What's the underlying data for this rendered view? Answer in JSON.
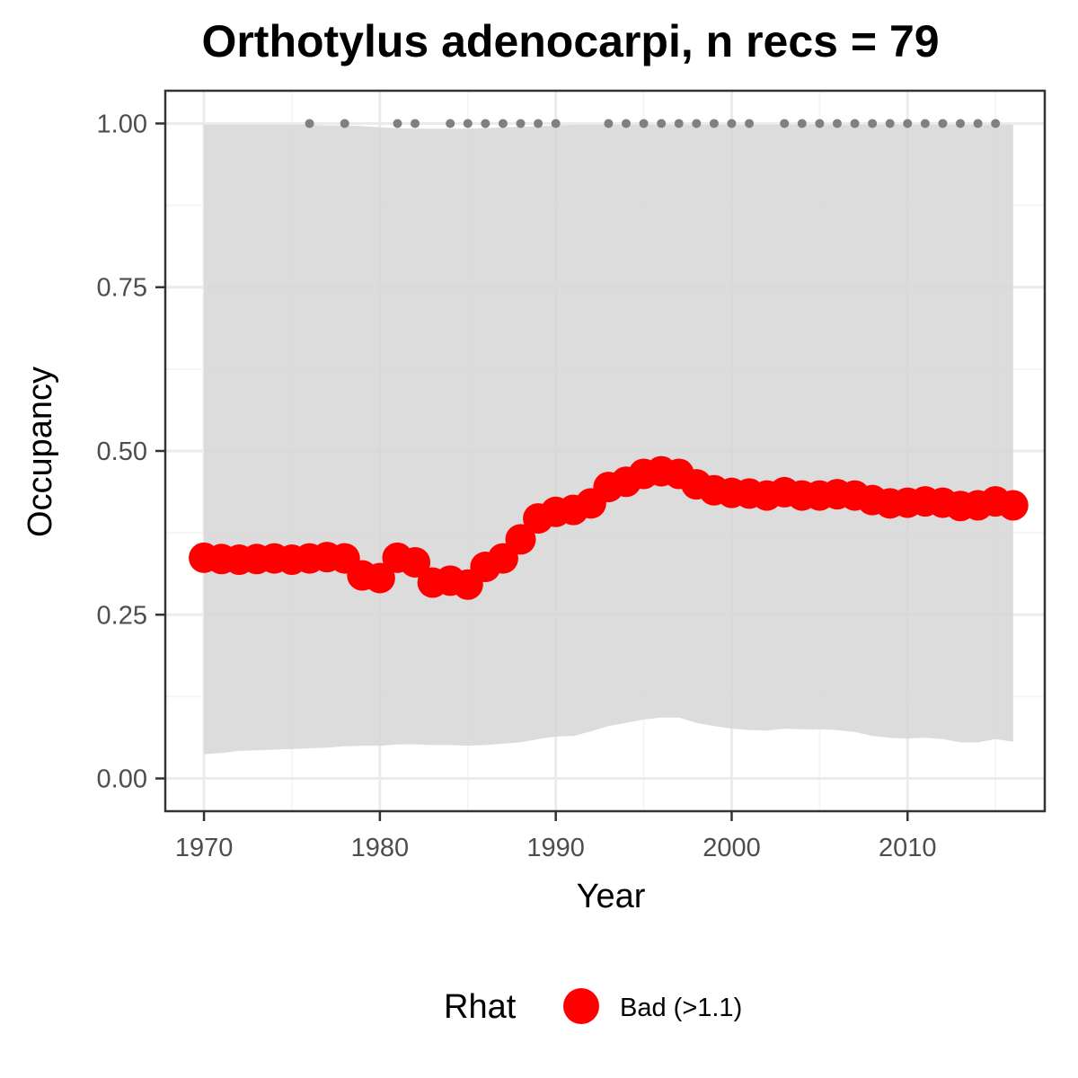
{
  "chart_data": {
    "type": "line",
    "title": "Orthotylus adenocarpi, n recs = 79",
    "xlabel": "Year",
    "ylabel": "Occupancy",
    "xlim": [
      1967.8,
      2017.8
    ],
    "ylim": [
      -0.05,
      1.05
    ],
    "x_ticks": [
      1970,
      1980,
      1990,
      2000,
      2010
    ],
    "x_tick_labels": [
      "1970",
      "1980",
      "1990",
      "2000",
      "2010"
    ],
    "y_ticks": [
      0,
      0.25,
      0.5,
      0.75,
      1
    ],
    "y_tick_labels": [
      "0.00",
      "0.25",
      "0.50",
      "0.75",
      "1.00"
    ],
    "grid": true,
    "years": [
      1970,
      1971,
      1972,
      1973,
      1974,
      1975,
      1976,
      1977,
      1978,
      1979,
      1980,
      1981,
      1982,
      1983,
      1984,
      1985,
      1986,
      1987,
      1988,
      1989,
      1990,
      1991,
      1992,
      1993,
      1994,
      1995,
      1996,
      1997,
      1998,
      1999,
      2000,
      2001,
      2002,
      2003,
      2004,
      2005,
      2006,
      2007,
      2008,
      2009,
      2010,
      2011,
      2012,
      2013,
      2014,
      2015,
      2016
    ],
    "series": [
      {
        "name": "Bad (>1.1)",
        "color": "#ff0000",
        "mean": [
          0.337,
          0.335,
          0.334,
          0.335,
          0.336,
          0.334,
          0.336,
          0.338,
          0.336,
          0.31,
          0.306,
          0.337,
          0.33,
          0.299,
          0.302,
          0.296,
          0.323,
          0.336,
          0.365,
          0.397,
          0.407,
          0.41,
          0.42,
          0.445,
          0.453,
          0.465,
          0.469,
          0.465,
          0.449,
          0.44,
          0.436,
          0.435,
          0.432,
          0.437,
          0.432,
          0.432,
          0.434,
          0.432,
          0.425,
          0.42,
          0.421,
          0.423,
          0.421,
          0.416,
          0.417,
          0.423,
          0.417
        ],
        "lower": [
          0.037,
          0.039,
          0.042,
          0.043,
          0.044,
          0.045,
          0.046,
          0.047,
          0.049,
          0.05,
          0.05,
          0.052,
          0.052,
          0.051,
          0.051,
          0.05,
          0.051,
          0.053,
          0.055,
          0.06,
          0.064,
          0.065,
          0.072,
          0.08,
          0.085,
          0.09,
          0.093,
          0.093,
          0.085,
          0.08,
          0.076,
          0.074,
          0.073,
          0.076,
          0.075,
          0.075,
          0.074,
          0.071,
          0.065,
          0.062,
          0.061,
          0.062,
          0.06,
          0.055,
          0.055,
          0.06,
          0.056
        ],
        "upper": [
          0.998,
          0.998,
          0.998,
          0.998,
          0.998,
          0.998,
          0.998,
          0.997,
          0.997,
          0.996,
          0.994,
          0.993,
          0.992,
          0.992,
          0.992,
          0.992,
          0.993,
          0.994,
          0.995,
          0.996,
          0.997,
          0.998,
          0.998,
          0.998,
          0.998,
          0.998,
          0.998,
          0.998,
          0.998,
          0.998,
          0.998,
          0.998,
          0.998,
          0.998,
          0.998,
          0.998,
          0.998,
          0.998,
          0.998,
          0.998,
          0.998,
          0.998,
          0.998,
          0.998,
          0.998,
          0.998,
          0.998
        ]
      }
    ],
    "record_years": [
      1976,
      1978,
      1981,
      1982,
      1984,
      1985,
      1986,
      1987,
      1988,
      1989,
      1990,
      1993,
      1994,
      1995,
      1996,
      1997,
      1998,
      1999,
      2000,
      2001,
      2003,
      2004,
      2005,
      2006,
      2007,
      2008,
      2009,
      2010,
      2011,
      2012,
      2013,
      2014,
      2015
    ],
    "record_value": 1,
    "colors": {
      "ribbon": "#d6d6d6",
      "line": "#ff0000",
      "records": "#808080",
      "grid_major": "#ebebeb",
      "grid_minor": "#f5f5f5",
      "panel_border": "#333333",
      "tick_label": "#4d4d4d"
    },
    "legend": {
      "title": "Rhat",
      "position": "bottom",
      "items": [
        {
          "label": "Bad (>1.1)",
          "color": "#ff0000"
        }
      ]
    }
  }
}
